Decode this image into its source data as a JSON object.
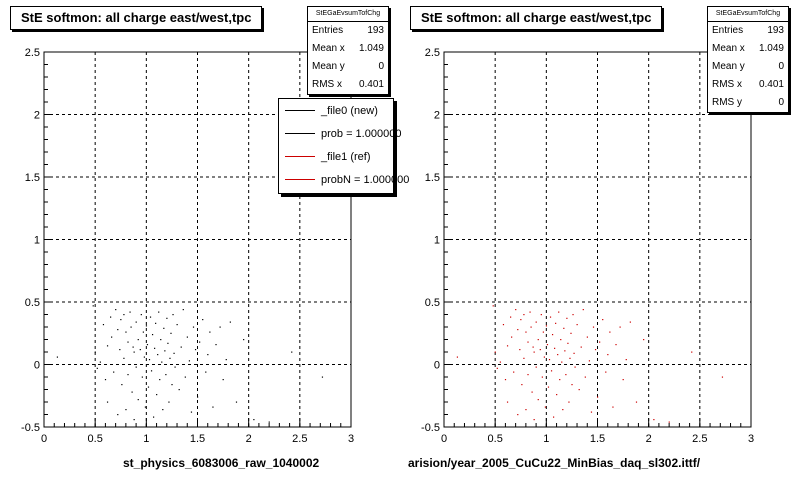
{
  "chart_data": [
    {
      "type": "scatter",
      "title": "StE softmon: all charge east/west,tpc",
      "xlabel": "st_physics_6083006_raw_1040002",
      "xlim": [
        0,
        3
      ],
      "ylim": [
        -0.5,
        2.5
      ],
      "x_ticks": [
        "0",
        "0.5",
        "1",
        "1.5",
        "2",
        "2.5",
        "3"
      ],
      "y_ticks": [
        "-0.5",
        "0",
        "0.5",
        "1",
        "1.5",
        "2",
        "2.5"
      ],
      "grid": true,
      "marker_color": "#000000",
      "stats": {
        "name": "StEGaEvsumTofChg",
        "rows": [
          {
            "label": "Entries",
            "value": "193"
          },
          {
            "label": "Mean x",
            "value": "1.049"
          },
          {
            "label": "Mean y",
            "value": "0"
          },
          {
            "label": "RMS x",
            "value": "0.401"
          }
        ]
      },
      "legend": {
        "placement": "top-right",
        "entries": [
          {
            "label": "_file0 (new)",
            "color": "#000000"
          },
          {
            "label": "prob = 1.000000",
            "color": "#000000"
          },
          {
            "label": "_file1 (ref)",
            "color": "#cc0000"
          },
          {
            "label": "probN = 1.000000",
            "color": "#cc0000"
          }
        ]
      },
      "points": [
        [
          0.13,
          0.06
        ],
        [
          0.48,
          0.47
        ],
        [
          0.5,
          0.1
        ],
        [
          0.52,
          -0.03
        ],
        [
          0.55,
          0.02
        ],
        [
          0.58,
          0.32
        ],
        [
          0.6,
          -0.12
        ],
        [
          0.62,
          0.15
        ],
        [
          0.62,
          -0.3
        ],
        [
          0.65,
          0.38
        ],
        [
          0.66,
          0.22
        ],
        [
          0.68,
          -0.06
        ],
        [
          0.7,
          0.44
        ],
        [
          0.72,
          0.28
        ],
        [
          0.72,
          -0.4
        ],
        [
          0.74,
          0.12
        ],
        [
          0.75,
          0.36
        ],
        [
          0.76,
          -0.16
        ],
        [
          0.78,
          0.4
        ],
        [
          0.78,
          0.05
        ],
        [
          0.8,
          0.26
        ],
        [
          0.8,
          -0.36
        ],
        [
          0.82,
          0.18
        ],
        [
          0.82,
          -0.08
        ],
        [
          0.84,
          0.42
        ],
        [
          0.85,
          0.3
        ],
        [
          0.86,
          -0.22
        ],
        [
          0.87,
          0.14
        ],
        [
          0.88,
          0.1
        ],
        [
          0.88,
          -0.44
        ],
        [
          0.9,
          0.34
        ],
        [
          0.9,
          -0.02
        ],
        [
          0.92,
          0.2
        ],
        [
          0.92,
          -0.28
        ],
        [
          0.94,
          0.12
        ],
        [
          0.95,
          0.4
        ],
        [
          0.96,
          -0.1
        ],
        [
          0.97,
          0.26
        ],
        [
          0.98,
          0.06
        ],
        [
          0.99,
          -0.34
        ],
        [
          1.0,
          0.31
        ],
        [
          1.01,
          0.16
        ],
        [
          1.02,
          -0.18
        ],
        [
          1.03,
          0.04
        ],
        [
          1.04,
          0.38
        ],
        [
          1.05,
          -0.05
        ],
        [
          1.06,
          0.24
        ],
        [
          1.07,
          -0.42
        ],
        [
          1.08,
          0.13
        ],
        [
          1.09,
          0.33
        ],
        [
          1.1,
          -0.24
        ],
        [
          1.11,
          0.08
        ],
        [
          1.12,
          0.42
        ],
        [
          1.13,
          -0.12
        ],
        [
          1.14,
          0.2
        ],
        [
          1.15,
          0.02
        ],
        [
          1.16,
          -0.36
        ],
        [
          1.17,
          0.29
        ],
        [
          1.18,
          0.11
        ],
        [
          1.19,
          -0.08
        ],
        [
          1.2,
          0.37
        ],
        [
          1.21,
          0.17
        ],
        [
          1.22,
          -0.3
        ],
        [
          1.23,
          0.05
        ],
        [
          1.24,
          0.25
        ],
        [
          1.25,
          -0.16
        ],
        [
          1.26,
          0.4
        ],
        [
          1.27,
          0.09
        ],
        [
          1.28,
          -0.02
        ],
        [
          1.3,
          0.32
        ],
        [
          1.32,
          -0.2
        ],
        [
          1.34,
          0.14
        ],
        [
          1.36,
          0.44
        ],
        [
          1.38,
          -0.1
        ],
        [
          1.4,
          0.22
        ],
        [
          1.42,
          0.03
        ],
        [
          1.44,
          -0.38
        ],
        [
          1.46,
          0.3
        ],
        [
          1.48,
          0.12
        ],
        [
          1.5,
          -0.26
        ],
        [
          1.52,
          0.18
        ],
        [
          1.55,
          0.36
        ],
        [
          1.58,
          -0.06
        ],
        [
          1.6,
          0.08
        ],
        [
          1.62,
          0.26
        ],
        [
          1.65,
          -0.34
        ],
        [
          1.68,
          0.16
        ],
        [
          1.72,
          0.3
        ],
        [
          1.75,
          -0.12
        ],
        [
          1.78,
          0.04
        ],
        [
          1.82,
          0.34
        ],
        [
          1.88,
          -0.3
        ],
        [
          1.95,
          0.2
        ],
        [
          2.05,
          -0.44
        ],
        [
          2.2,
          -0.46
        ],
        [
          2.42,
          0.1
        ],
        [
          2.72,
          -0.1
        ]
      ]
    },
    {
      "type": "scatter",
      "title": "StE softmon: all charge east/west,tpc",
      "xlabel": "arision/year_2005_CuCu22_MinBias_daq_sl302.ittf/",
      "xlim": [
        0,
        3
      ],
      "ylim": [
        -0.5,
        2.5
      ],
      "x_ticks": [
        "0",
        "0.5",
        "1",
        "1.5",
        "2",
        "2.5",
        "3"
      ],
      "y_ticks": [
        "-0.5",
        "0",
        "0.5",
        "1",
        "1.5",
        "2",
        "2.5"
      ],
      "grid": true,
      "marker_color": "#cc0000",
      "stats": {
        "name": "StEGaEvsumTofChg",
        "rows": [
          {
            "label": "Entries",
            "value": "193"
          },
          {
            "label": "Mean x",
            "value": "1.049"
          },
          {
            "label": "Mean y",
            "value": "0"
          },
          {
            "label": "RMS x",
            "value": "0.401"
          },
          {
            "label": "RMS y",
            "value": "0"
          }
        ]
      },
      "points": [
        [
          0.13,
          0.06
        ],
        [
          0.48,
          0.47
        ],
        [
          0.5,
          0.1
        ],
        [
          0.52,
          -0.03
        ],
        [
          0.55,
          0.02
        ],
        [
          0.58,
          0.32
        ],
        [
          0.6,
          -0.12
        ],
        [
          0.62,
          0.15
        ],
        [
          0.62,
          -0.3
        ],
        [
          0.65,
          0.38
        ],
        [
          0.66,
          0.22
        ],
        [
          0.68,
          -0.06
        ],
        [
          0.7,
          0.44
        ],
        [
          0.72,
          0.28
        ],
        [
          0.72,
          -0.4
        ],
        [
          0.74,
          0.12
        ],
        [
          0.75,
          0.36
        ],
        [
          0.76,
          -0.16
        ],
        [
          0.78,
          0.4
        ],
        [
          0.78,
          0.05
        ],
        [
          0.8,
          0.26
        ],
        [
          0.8,
          -0.36
        ],
        [
          0.82,
          0.18
        ],
        [
          0.82,
          -0.08
        ],
        [
          0.84,
          0.42
        ],
        [
          0.85,
          0.3
        ],
        [
          0.86,
          -0.22
        ],
        [
          0.87,
          0.14
        ],
        [
          0.88,
          0.1
        ],
        [
          0.88,
          -0.44
        ],
        [
          0.9,
          0.34
        ],
        [
          0.9,
          -0.02
        ],
        [
          0.92,
          0.2
        ],
        [
          0.92,
          -0.28
        ],
        [
          0.94,
          0.12
        ],
        [
          0.95,
          0.4
        ],
        [
          0.96,
          -0.1
        ],
        [
          0.97,
          0.26
        ],
        [
          0.98,
          0.06
        ],
        [
          0.99,
          -0.34
        ],
        [
          1.0,
          0.31
        ],
        [
          1.01,
          0.16
        ],
        [
          1.02,
          -0.18
        ],
        [
          1.03,
          0.04
        ],
        [
          1.04,
          0.38
        ],
        [
          1.05,
          -0.05
        ],
        [
          1.06,
          0.24
        ],
        [
          1.07,
          -0.42
        ],
        [
          1.08,
          0.13
        ],
        [
          1.09,
          0.33
        ],
        [
          1.1,
          -0.24
        ],
        [
          1.11,
          0.08
        ],
        [
          1.12,
          0.42
        ],
        [
          1.13,
          -0.12
        ],
        [
          1.14,
          0.2
        ],
        [
          1.15,
          0.02
        ],
        [
          1.16,
          -0.36
        ],
        [
          1.17,
          0.29
        ],
        [
          1.18,
          0.11
        ],
        [
          1.19,
          -0.08
        ],
        [
          1.2,
          0.37
        ],
        [
          1.21,
          0.17
        ],
        [
          1.22,
          -0.3
        ],
        [
          1.23,
          0.05
        ],
        [
          1.24,
          0.25
        ],
        [
          1.25,
          -0.16
        ],
        [
          1.26,
          0.4
        ],
        [
          1.27,
          0.09
        ],
        [
          1.28,
          -0.02
        ],
        [
          1.3,
          0.32
        ],
        [
          1.32,
          -0.2
        ],
        [
          1.34,
          0.14
        ],
        [
          1.36,
          0.44
        ],
        [
          1.38,
          -0.1
        ],
        [
          1.4,
          0.22
        ],
        [
          1.42,
          0.03
        ],
        [
          1.44,
          -0.38
        ],
        [
          1.46,
          0.3
        ],
        [
          1.48,
          0.12
        ],
        [
          1.5,
          -0.26
        ],
        [
          1.52,
          0.18
        ],
        [
          1.55,
          0.36
        ],
        [
          1.58,
          -0.06
        ],
        [
          1.6,
          0.08
        ],
        [
          1.62,
          0.26
        ],
        [
          1.65,
          -0.34
        ],
        [
          1.68,
          0.16
        ],
        [
          1.72,
          0.3
        ],
        [
          1.75,
          -0.12
        ],
        [
          1.78,
          0.04
        ],
        [
          1.82,
          0.34
        ],
        [
          1.88,
          -0.3
        ],
        [
          1.95,
          0.2
        ],
        [
          2.05,
          -0.44
        ],
        [
          2.2,
          -0.46
        ],
        [
          2.42,
          0.1
        ],
        [
          2.72,
          -0.1
        ]
      ]
    }
  ]
}
